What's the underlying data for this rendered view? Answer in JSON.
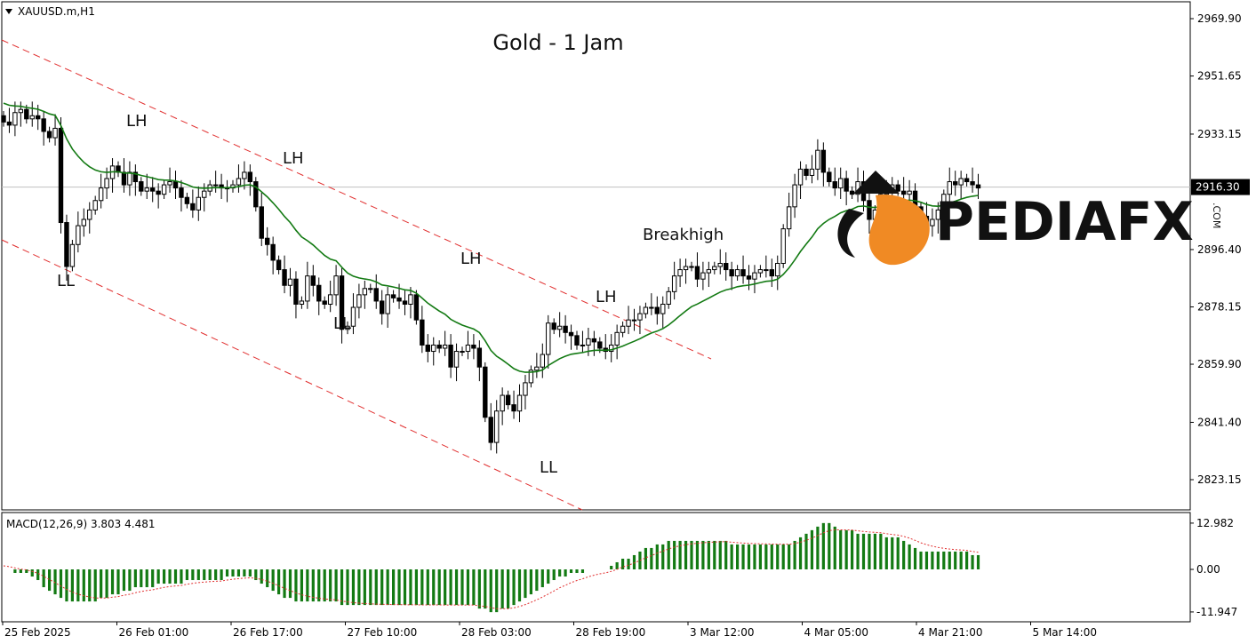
{
  "symbol_label": "XAUUSD.m,H1",
  "watermark": {
    "text": "PEDIAFX",
    "suffix": ".COM"
  },
  "chart_data": [
    {
      "type": "candlestick",
      "title": "Gold - 1 Jam",
      "ylim": [
        2810,
        2980
      ],
      "yticks": [
        2969.9,
        2951.65,
        2933.15,
        2916.3,
        2896.4,
        2878.15,
        2859.9,
        2841.4,
        2823.15
      ],
      "ytick_labels": [
        "2969.90",
        "2951.65",
        "2933.15",
        "2916.30",
        "2896.40",
        "2878.15",
        "2859.90",
        "2841.40",
        "2823.15"
      ],
      "current_price": 2916.3,
      "current_price_label": "2916.30",
      "xtick_labels": [
        "25 Feb 2025",
        "26 Feb 01:00",
        "26 Feb 17:00",
        "27 Feb 10:00",
        "28 Feb 03:00",
        "28 Feb 19:00",
        "3 Mar 12:00",
        "4 Mar 05:00",
        "4 Mar 21:00",
        "5 Mar 14:00"
      ],
      "close": [
        2937,
        2936,
        2940,
        2941,
        2938,
        2939,
        2938,
        2934,
        2932,
        2935,
        2905,
        2891,
        2898,
        2904,
        2906,
        2909,
        2912,
        2916,
        2919,
        2923,
        2921,
        2917,
        2921,
        2918,
        2915,
        2916,
        2915,
        2914,
        2917,
        2918,
        2916,
        2913,
        2911,
        2909,
        2913,
        2915,
        2917,
        2917,
        2916,
        2916,
        2917,
        2919,
        2921,
        2918,
        2910,
        2900,
        2898,
        2893,
        2890,
        2885,
        2887,
        2879,
        2880,
        2888,
        2885,
        2880,
        2879,
        2882,
        2888,
        2871,
        2872,
        2878,
        2882,
        2884,
        2884,
        2880,
        2876,
        2882,
        2881,
        2880,
        2879,
        2882,
        2874,
        2866,
        2864,
        2866,
        2865,
        2866,
        2859,
        2864,
        2864,
        2866,
        2865,
        2859,
        2843,
        2835,
        2845,
        2850,
        2847,
        2845,
        2850,
        2854,
        2858,
        2859,
        2863,
        2873,
        2871,
        2872,
        2870,
        2869,
        2866,
        2866,
        2868,
        2867,
        2865,
        2864,
        2866,
        2870,
        2872,
        2874,
        2874,
        2876,
        2878,
        2878,
        2876,
        2879,
        2883,
        2888,
        2890,
        2891,
        2891,
        2887,
        2889,
        2890,
        2891,
        2892,
        2890,
        2888,
        2890,
        2888,
        2887,
        2889,
        2890,
        2890,
        2888,
        2892,
        2903,
        2910,
        2917,
        2922,
        2920,
        2922,
        2928,
        2921,
        2918,
        2916,
        2919,
        2915,
        2914,
        2918,
        2912,
        2906,
        2909,
        2914,
        2915,
        2917,
        2915,
        2914,
        2915,
        2910,
        2907,
        2904,
        2906,
        2909,
        2914,
        2918,
        2917,
        2919,
        2918,
        2917,
        2916
      ],
      "ma": {
        "type": "line",
        "color": "#137a13"
      },
      "channel_lines": {
        "color": "#e13030",
        "style": "dashed"
      },
      "annotations": [
        {
          "text": "LH",
          "index": 19
        },
        {
          "text": "LL",
          "index": 10
        },
        {
          "text": "LH",
          "index": 45
        },
        {
          "text": "LL",
          "index": 55
        },
        {
          "text": "LH",
          "index": 75
        },
        {
          "text": "LL",
          "index": 88
        },
        {
          "text": "LH",
          "index": 97
        },
        {
          "text": "Breakhigh",
          "index": 108
        }
      ]
    },
    {
      "type": "bar",
      "title": "MACD(12,26,9) 3.803 4.481",
      "ylim": [
        -14,
        16
      ],
      "yticks": [
        12.982,
        0.0,
        -11.947
      ],
      "ytick_labels": [
        "12.982",
        "0.00",
        "-11.947"
      ],
      "histogram_color": "#137a13",
      "signal_color": "#e13030",
      "values": [
        0,
        0,
        -1,
        -1,
        -1,
        -2,
        -3,
        -5,
        -6,
        -7,
        -8,
        -9,
        -9,
        -9,
        -9,
        -9,
        -9,
        -8,
        -8,
        -7,
        -7,
        -6,
        -6,
        -5,
        -5,
        -5,
        -5,
        -4,
        -4,
        -4,
        -4,
        -4,
        -3,
        -3,
        -3,
        -3,
        -3,
        -3,
        -3,
        -2,
        -2,
        -2,
        -2,
        -2,
        -3,
        -4,
        -5,
        -6,
        -7,
        -8,
        -8,
        -9,
        -9,
        -9,
        -9,
        -9,
        -9,
        -9,
        -9,
        -10,
        -10,
        -10,
        -10,
        -10,
        -10,
        -10,
        -10,
        -10,
        -10,
        -10,
        -10,
        -10,
        -10,
        -10,
        -10,
        -10,
        -10,
        -10,
        -10,
        -10,
        -10,
        -10,
        -10,
        -11,
        -11,
        -12,
        -12,
        -11,
        -11,
        -10,
        -9,
        -8,
        -7,
        -6,
        -5,
        -4,
        -3,
        -2,
        -2,
        -1,
        -1,
        -1,
        0,
        0,
        0,
        0,
        1,
        2,
        3,
        3,
        4,
        5,
        6,
        6,
        7,
        7,
        8,
        8,
        8,
        8,
        8,
        8,
        8,
        8,
        8,
        8,
        8,
        7,
        7,
        7,
        7,
        7,
        7,
        7,
        7,
        7,
        7,
        7,
        8,
        9,
        10,
        11,
        12,
        13,
        13,
        12,
        11,
        11,
        11,
        10,
        10,
        10,
        10,
        10,
        9,
        9,
        9,
        8,
        7,
        6,
        5,
        5,
        5,
        5,
        5,
        5,
        5,
        5,
        5,
        4,
        4
      ]
    }
  ]
}
